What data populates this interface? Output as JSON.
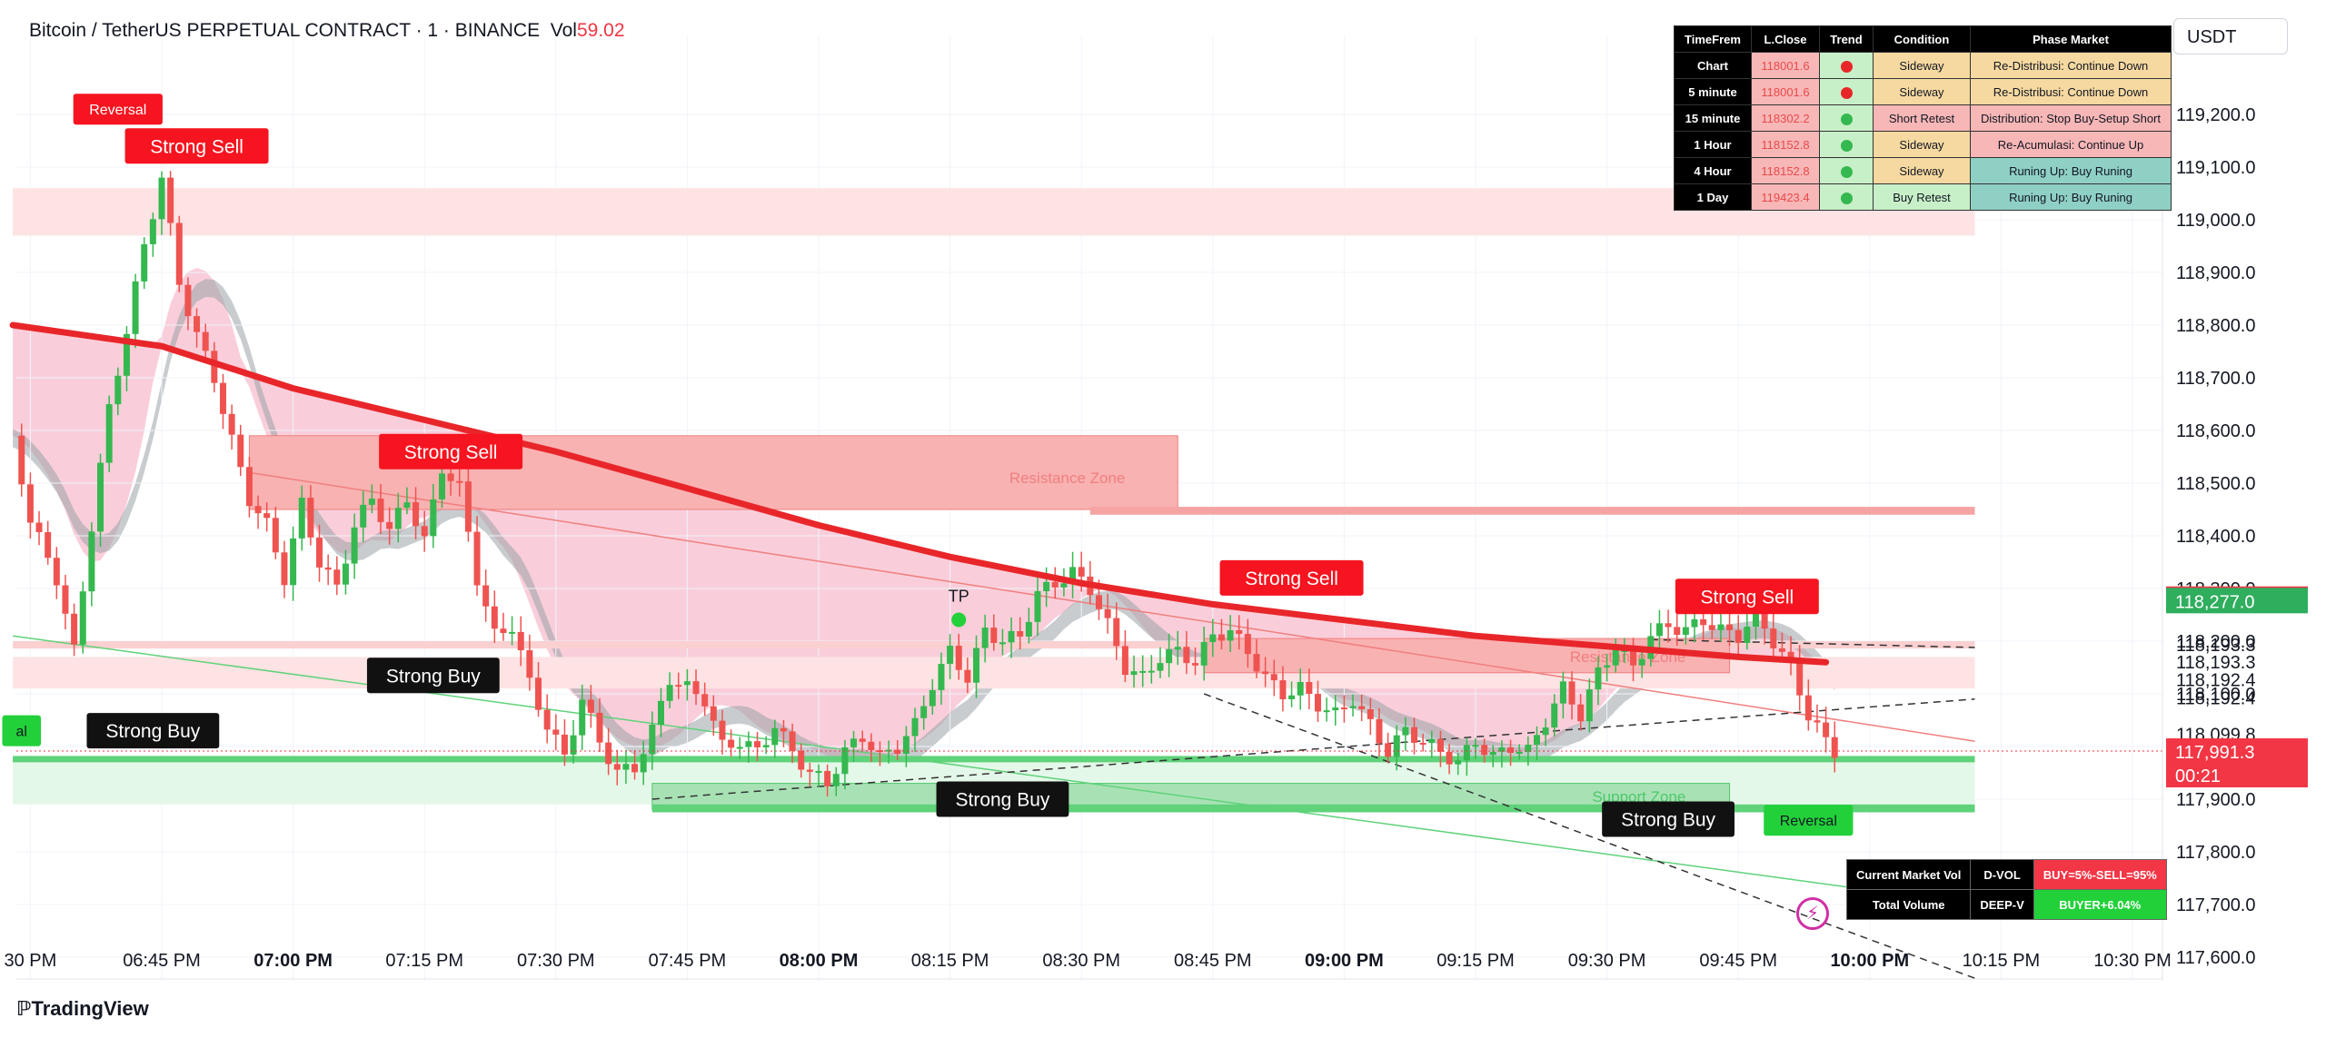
{
  "header": {
    "symbol": "Bitcoin / TetherUS PERPETUAL CONTRACT · 1 · BINANCE",
    "vol_label": "Vol",
    "vol_value": "59.02",
    "currency": "USDT"
  },
  "timeframe_table": {
    "headers": [
      "TimeFrem",
      "L.Close",
      "Trend",
      "Condition",
      "Phase Market"
    ],
    "rows": [
      {
        "tf": "Chart",
        "close": "118001.6",
        "trend": "red",
        "condition": "Sideway",
        "phase": "Re-Distribusi: Continue Down",
        "cond_color": "#f6d9a0",
        "phase_color": "#f6d9a0"
      },
      {
        "tf": "5 minute",
        "close": "118001.6",
        "trend": "red",
        "condition": "Sideway",
        "phase": "Re-Distribusi: Continue Down",
        "cond_color": "#f6d9a0",
        "phase_color": "#f6d9a0"
      },
      {
        "tf": "15 minute",
        "close": "118302.2",
        "trend": "green",
        "condition": "Short Retest",
        "phase": "Distribution: Stop Buy-Setup Short",
        "cond_color": "#f7b7b7",
        "phase_color": "#f7b7b7"
      },
      {
        "tf": "1 Hour",
        "close": "118152.8",
        "trend": "green",
        "condition": "Sideway",
        "phase": "Re-Acumulasi: Continue Up",
        "cond_color": "#f6d9a0",
        "phase_color": "#f7b7b7"
      },
      {
        "tf": "4 Hour",
        "close": "118152.8",
        "trend": "green",
        "condition": "Sideway",
        "phase": "Runing Up: Buy Runing",
        "cond_color": "#f6d9a0",
        "phase_color": "#8fd0c4"
      },
      {
        "tf": "1 Day",
        "close": "119423.4",
        "trend": "green",
        "condition": "Buy Retest",
        "phase": "Runing Up: Buy Runing",
        "cond_color": "#c8f0c8",
        "phase_color": "#8fd0c4"
      }
    ]
  },
  "volume_table": {
    "rows": [
      {
        "label": "Current Market Vol",
        "type": "D-VOL",
        "value": "BUY=5%-SELL=95%",
        "value_color": "#f23645"
      },
      {
        "label": "Total Volume",
        "type": "DEEP-V",
        "value": "BUYER+6.04%",
        "value_color": "#22d13a"
      }
    ]
  },
  "price_labels": [
    {
      "text": "118,279.8159",
      "price": 118279.8,
      "bg": "#f23645",
      "color": "#ffffff"
    },
    {
      "text": "118,277.0",
      "price": 118277.0,
      "bg": "#2fae5e",
      "color": "#ffffff"
    },
    {
      "text": "117,991.3",
      "price": 117991.3,
      "bg": "#f23645",
      "color": "#ffffff"
    },
    {
      "text": "00:21",
      "price": 117991.3,
      "bg": "#f23645",
      "color": "#ffffff",
      "sub": true
    }
  ],
  "level_labels": [
    {
      "text": "118,277.0",
      "price": 118277.0
    },
    {
      "text": "118,193.3",
      "price": 118193.3
    },
    {
      "text": "118,193.3",
      "price": 118160.0
    },
    {
      "text": "118,192.4",
      "price": 118127.0
    },
    {
      "text": "118,192.4",
      "price": 118092.0
    },
    {
      "text": "118,099.8",
      "price": 118023.0
    }
  ],
  "annotations": [
    {
      "text": "Reversal",
      "kind": "red",
      "t": -5,
      "price": 119210
    },
    {
      "text": "Strong Sell",
      "kind": "red",
      "t": 4,
      "price": 119140
    },
    {
      "text": "Strong Sell",
      "kind": "red",
      "t": 33,
      "price": 118560
    },
    {
      "text": "Strong Buy",
      "kind": "black",
      "t": 31,
      "price": 118135
    },
    {
      "text": "Strong Buy",
      "kind": "black",
      "t": -1,
      "price": 118030
    },
    {
      "text": "al",
      "kind": "green",
      "t": -16,
      "price": 118030
    },
    {
      "text": "TP",
      "kind": "text",
      "t": 91,
      "price": 118275
    },
    {
      "text": "Strong Buy",
      "kind": "black",
      "t": 96,
      "price": 117900
    },
    {
      "text": "Strong Sell",
      "kind": "red",
      "t": 129,
      "price": 118320
    },
    {
      "text": "Strong Sell",
      "kind": "red",
      "t": 181,
      "price": 118285
    },
    {
      "text": "Strong Buy",
      "kind": "black",
      "t": 172,
      "price": 117862
    },
    {
      "text": "Reversal",
      "kind": "green",
      "t": 188,
      "price": 117860
    }
  ],
  "zone_labels": [
    {
      "text": "Resistance Zone",
      "color": "#f07f7f"
    },
    {
      "text": "Resistance Zone",
      "color": "#f07f7f"
    },
    {
      "text": "Support Zone",
      "color": "#4fc76b"
    }
  ],
  "chart_data": {
    "type": "candlestick",
    "title": "Bitcoin / TetherUS PERPETUAL CONTRACT · 1 · BINANCE",
    "y_axis": {
      "min": 117540,
      "max": 119200,
      "ticks": [
        119200,
        119100,
        119000,
        118900,
        118800,
        118700,
        118600,
        118500,
        118400,
        118300,
        118200,
        118100,
        118000,
        117900,
        117800,
        117700,
        117600
      ]
    },
    "x_axis": {
      "ticks": [
        {
          "label": "30 PM",
          "t": -15,
          "bold": false
        },
        {
          "label": "06:45 PM",
          "t": 0,
          "bold": false
        },
        {
          "label": "07:00 PM",
          "t": 15,
          "bold": true
        },
        {
          "label": "07:15 PM",
          "t": 30,
          "bold": false
        },
        {
          "label": "07:30 PM",
          "t": 45,
          "bold": false
        },
        {
          "label": "07:45 PM",
          "t": 60,
          "bold": false
        },
        {
          "label": "08:00 PM",
          "t": 75,
          "bold": true
        },
        {
          "label": "08:15 PM",
          "t": 90,
          "bold": false
        },
        {
          "label": "08:30 PM",
          "t": 105,
          "bold": false
        },
        {
          "label": "08:45 PM",
          "t": 120,
          "bold": false
        },
        {
          "label": "09:00 PM",
          "t": 135,
          "bold": true
        },
        {
          "label": "09:15 PM",
          "t": 150,
          "bold": false
        },
        {
          "label": "09:30 PM",
          "t": 165,
          "bold": false
        },
        {
          "label": "09:45 PM",
          "t": 180,
          "bold": false
        },
        {
          "label": "10:00 PM",
          "t": 195,
          "bold": true
        },
        {
          "label": "10:15 PM",
          "t": 210,
          "bold": false
        },
        {
          "label": "10:30 PM",
          "t": 225,
          "bold": false
        }
      ]
    },
    "price_path": [
      [
        -17,
        118590
      ],
      [
        -15,
        118430
      ],
      [
        -12,
        118320
      ],
      [
        -10,
        118180
      ],
      [
        -8,
        118420
      ],
      [
        -6,
        118640
      ],
      [
        -4,
        118790
      ],
      [
        -2,
        118950
      ],
      [
        0,
        119080
      ],
      [
        2,
        118880
      ],
      [
        4,
        118780
      ],
      [
        6,
        118700
      ],
      [
        8,
        118580
      ],
      [
        10,
        118470
      ],
      [
        12,
        118420
      ],
      [
        14,
        118320
      ],
      [
        16,
        118460
      ],
      [
        18,
        118350
      ],
      [
        20,
        118300
      ],
      [
        22,
        118420
      ],
      [
        24,
        118470
      ],
      [
        26,
        118410
      ],
      [
        28,
        118470
      ],
      [
        30,
        118390
      ],
      [
        32,
        118530
      ],
      [
        34,
        118490
      ],
      [
        36,
        118320
      ],
      [
        38,
        118210
      ],
      [
        40,
        118230
      ],
      [
        42,
        118120
      ],
      [
        44,
        118040
      ],
      [
        46,
        117980
      ],
      [
        48,
        118090
      ],
      [
        50,
        118010
      ],
      [
        52,
        117950
      ],
      [
        54,
        117960
      ],
      [
        56,
        118030
      ],
      [
        58,
        118130
      ],
      [
        60,
        118110
      ],
      [
        62,
        118090
      ],
      [
        64,
        118000
      ],
      [
        66,
        118010
      ],
      [
        68,
        117990
      ],
      [
        70,
        118040
      ],
      [
        72,
        117990
      ],
      [
        74,
        117950
      ],
      [
        76,
        117930
      ],
      [
        78,
        117990
      ],
      [
        80,
        118020
      ],
      [
        82,
        117980
      ],
      [
        84,
        118000
      ],
      [
        86,
        118040
      ],
      [
        88,
        118120
      ],
      [
        90,
        118180
      ],
      [
        92,
        118130
      ],
      [
        94,
        118220
      ],
      [
        96,
        118200
      ],
      [
        98,
        118210
      ],
      [
        100,
        118290
      ],
      [
        102,
        118310
      ],
      [
        104,
        118330
      ],
      [
        106,
        118300
      ],
      [
        108,
        118230
      ],
      [
        110,
        118150
      ],
      [
        112,
        118130
      ],
      [
        114,
        118170
      ],
      [
        116,
        118180
      ],
      [
        118,
        118160
      ],
      [
        120,
        118210
      ],
      [
        122,
        118220
      ],
      [
        124,
        118180
      ],
      [
        126,
        118130
      ],
      [
        128,
        118100
      ],
      [
        130,
        118110
      ],
      [
        132,
        118080
      ],
      [
        134,
        118060
      ],
      [
        136,
        118090
      ],
      [
        138,
        118040
      ],
      [
        140,
        117990
      ],
      [
        142,
        118030
      ],
      [
        144,
        118010
      ],
      [
        146,
        117990
      ],
      [
        148,
        117970
      ],
      [
        150,
        118010
      ],
      [
        152,
        117980
      ],
      [
        154,
        118000
      ],
      [
        156,
        117990
      ],
      [
        158,
        118050
      ],
      [
        160,
        118110
      ],
      [
        162,
        118060
      ],
      [
        164,
        118140
      ],
      [
        166,
        118190
      ],
      [
        168,
        118150
      ],
      [
        170,
        118210
      ],
      [
        172,
        118230
      ],
      [
        174,
        118220
      ],
      [
        176,
        118240
      ],
      [
        178,
        118220
      ],
      [
        180,
        118210
      ],
      [
        182,
        118250
      ],
      [
        184,
        118200
      ],
      [
        186,
        118150
      ],
      [
        188,
        118060
      ],
      [
        190,
        118010
      ],
      [
        191,
        117991
      ]
    ],
    "series": [
      {
        "name": "",
        "color": "#e8262a",
        "points": [
          [
            -17,
            118800
          ],
          [
            0,
            118760
          ],
          [
            15,
            118680
          ],
          [
            30,
            118620
          ],
          [
            45,
            118560
          ],
          [
            60,
            118490
          ],
          [
            75,
            118420
          ],
          [
            90,
            118360
          ],
          [
            105,
            118310
          ],
          [
            120,
            118270
          ],
          [
            135,
            118240
          ],
          [
            150,
            118210
          ],
          [
            165,
            118190
          ],
          [
            180,
            118170
          ],
          [
            190,
            118160
          ]
        ]
      }
    ],
    "current_price": 117991.3,
    "grid": true,
    "legend": "none"
  }
}
